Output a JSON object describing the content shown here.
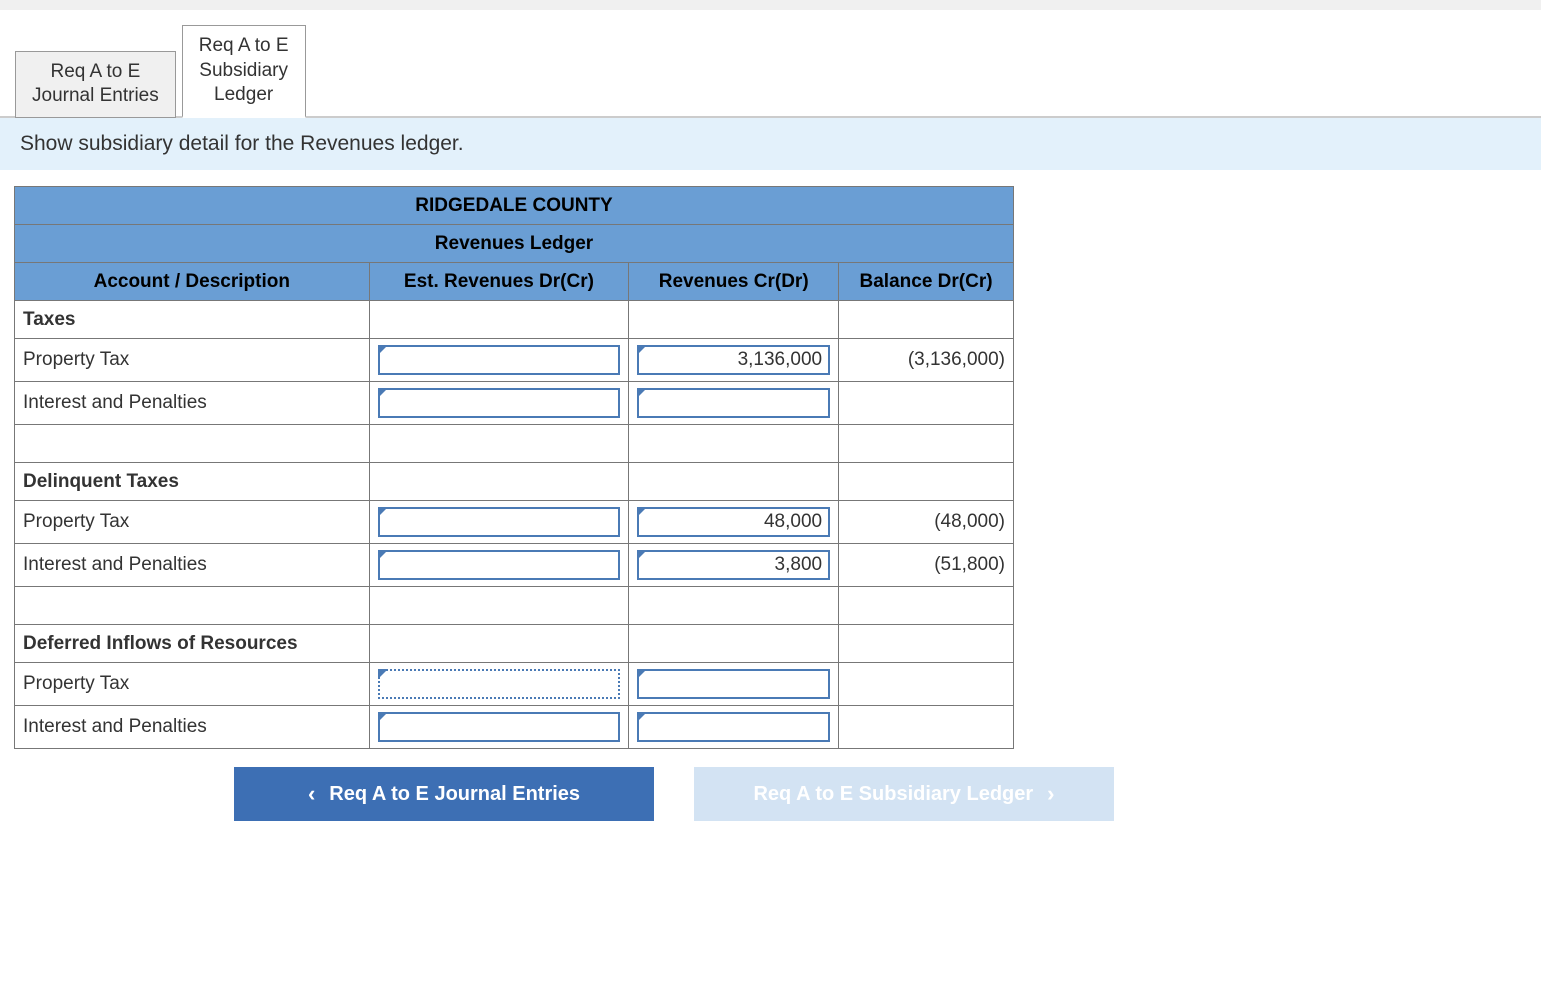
{
  "tabs": {
    "journal": "Req A to E\nJournal Entries",
    "subsidiary": "Req A to E\nSubsidiary\nLedger",
    "active": "subsidiary"
  },
  "instruction": "Show subsidiary detail for the Revenues ledger.",
  "ledger": {
    "title1": "RIDGEDALE COUNTY",
    "title2": "Revenues Ledger",
    "columns": {
      "desc": "Account / Description",
      "est": "Est. Revenues Dr(Cr)",
      "rev": "Revenues Cr(Dr)",
      "bal": "Balance Dr(Cr)"
    },
    "sections": [
      {
        "header": "Taxes",
        "rows": [
          {
            "desc": "Property Tax",
            "est": "",
            "rev": "3,136,000",
            "bal": "(3,136,000)",
            "est_input": true,
            "rev_input": true
          },
          {
            "desc": "Interest and Penalties",
            "est": "",
            "rev": "",
            "bal": "",
            "est_input": true,
            "rev_input": true
          },
          {
            "desc": "",
            "est": "",
            "rev": "",
            "bal": "",
            "est_input": false,
            "rev_input": false
          }
        ]
      },
      {
        "header": "Delinquent Taxes",
        "rows": [
          {
            "desc": "Property Tax",
            "est": "",
            "rev": "48,000",
            "bal": "(48,000)",
            "est_input": true,
            "rev_input": true
          },
          {
            "desc": "Interest and Penalties",
            "est": "",
            "rev": "3,800",
            "bal": "(51,800)",
            "est_input": true,
            "rev_input": true
          },
          {
            "desc": "",
            "est": "",
            "rev": "",
            "bal": "",
            "est_input": false,
            "rev_input": false
          }
        ]
      },
      {
        "header": "Deferred Inflows of Resources",
        "rows": [
          {
            "desc": "Property Tax",
            "est": "",
            "rev": "",
            "bal": "",
            "est_input": true,
            "est_dotted": true,
            "rev_input": true
          },
          {
            "desc": "Interest and Penalties",
            "est": "",
            "rev": "",
            "bal": "",
            "est_input": true,
            "rev_input": true
          }
        ]
      }
    ]
  },
  "nav": {
    "prev": "Req A to E Journal Entries",
    "next": "Req A to E Subsidiary Ledger"
  },
  "colors": {
    "header_bg": "#6a9ed4",
    "instruction_bg": "#e3f1fb",
    "input_border": "#4a7ab5",
    "nav_prev_bg": "#3d6fb4",
    "nav_next_bg": "#d3e3f3"
  }
}
